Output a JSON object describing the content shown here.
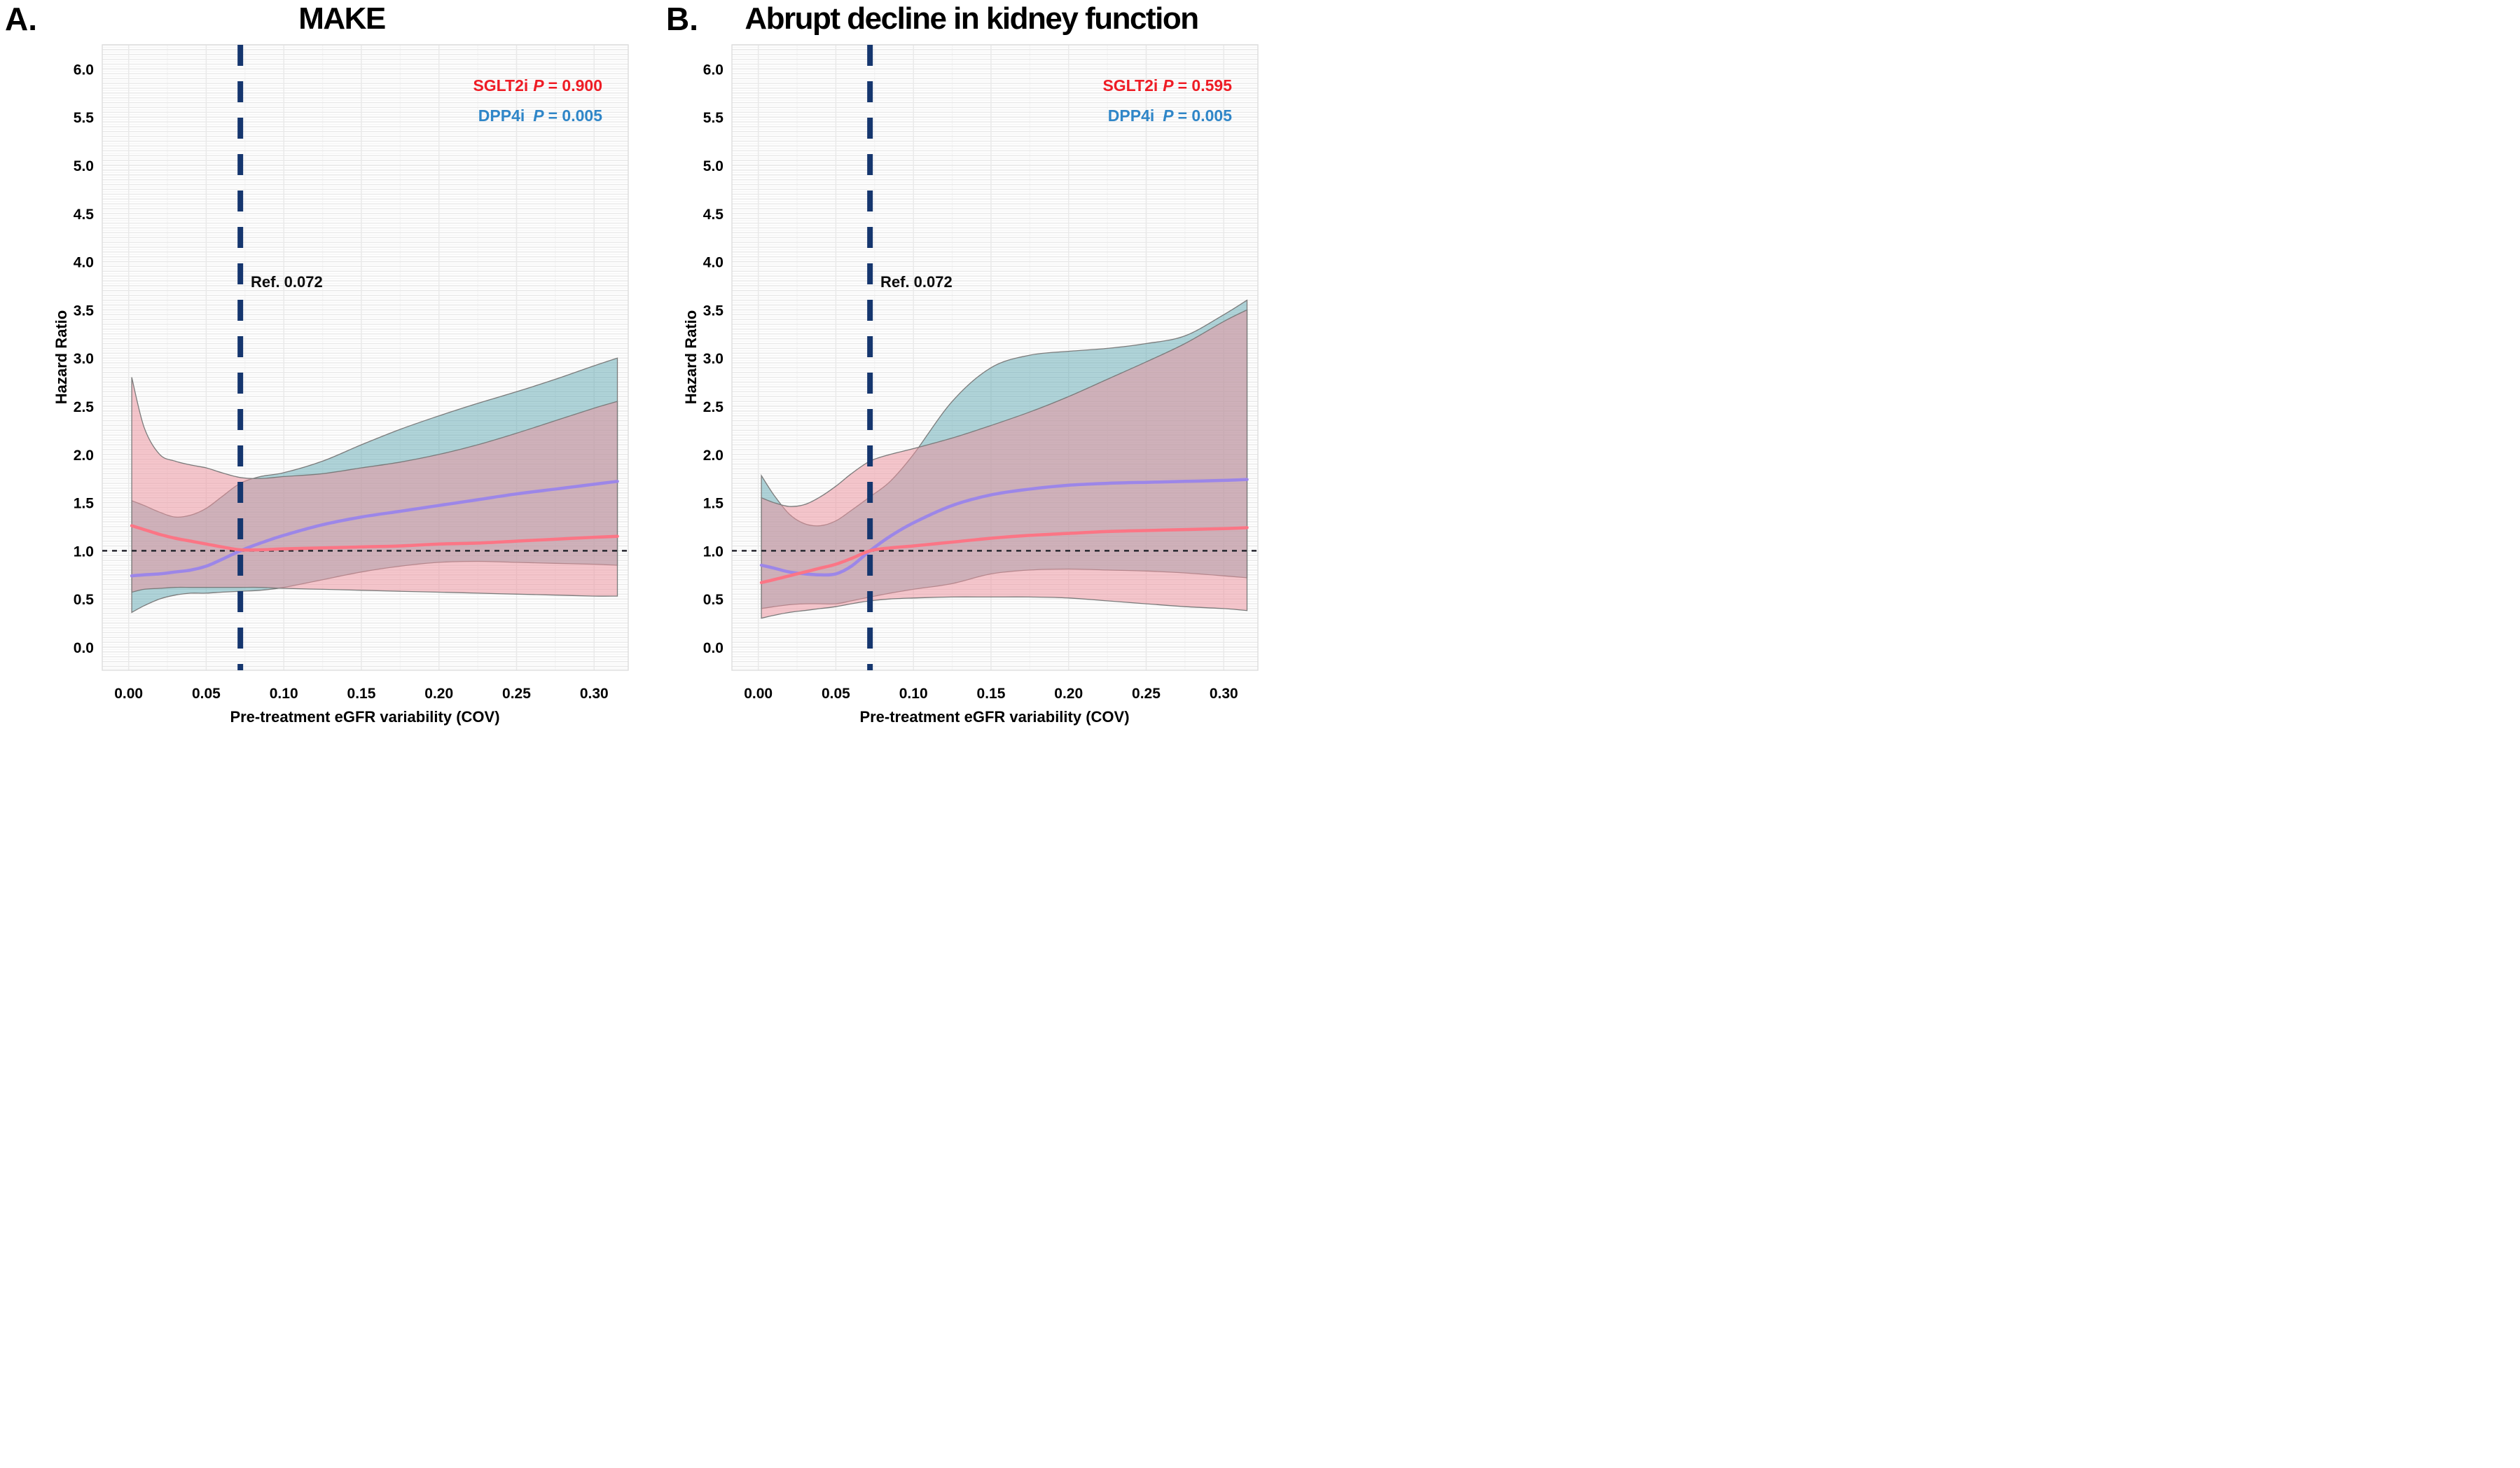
{
  "page": {
    "background": "#ffffff"
  },
  "axes": {
    "y_title": "Hazard Ratio",
    "x_title": "Pre-treatment eGFR variability (COV)"
  },
  "colors": {
    "legend_red": "#ee1c25",
    "legend_blue": "#2f86c8",
    "ref_navy": "#15366e",
    "hline_black": "#26262e",
    "band_border": "#7b7b7b",
    "grid_minor": "#f5f5f5",
    "grid_major": "#e9e9e9",
    "panel_edge": "#dddddd"
  },
  "panels": [
    {
      "letter": "A.",
      "title": "MAKE",
      "ref_label": "Ref. 0.072",
      "legend": {
        "sglt2i_name": "SGLT2i",
        "sglt2i_p": "P",
        "sglt2i_val": "= 0.900",
        "dpp4i_name": "DPP4i",
        "dpp4i_p": "P",
        "dpp4i_val": "= 0.005"
      }
    },
    {
      "letter": "B.",
      "title": "Abrupt decline in kidney function",
      "ref_label": "Ref. 0.072",
      "legend": {
        "sglt2i_name": "SGLT2i",
        "sglt2i_p": "P",
        "sglt2i_val": "= 0.595",
        "dpp4i_name": "DPP4i",
        "dpp4i_p": "P",
        "dpp4i_val": "= 0.005"
      }
    }
  ],
  "chart_data": [
    {
      "type": "line",
      "title": "MAKE",
      "xlabel": "Pre-treatment eGFR variability (COV)",
      "ylabel": "Hazard Ratio",
      "xlim": [
        -0.017,
        0.322
      ],
      "ylim": [
        -0.24,
        6.25
      ],
      "x_ticks": [
        0.0,
        0.05,
        0.1,
        0.15,
        0.2,
        0.25,
        0.3
      ],
      "y_ticks": [
        0.0,
        0.5,
        1.0,
        1.5,
        2.0,
        2.5,
        3.0,
        3.5,
        4.0,
        4.5,
        5.0,
        5.5,
        6.0
      ],
      "x_minor_step": 0.025,
      "y_minor_step": 0.25,
      "grid": true,
      "hline_y": 1.0,
      "ref_line_x": 0.072,
      "ref_label": "Ref. 0.072",
      "legend_position": "top-right",
      "x": [
        0.002,
        0.01,
        0.02,
        0.03,
        0.04,
        0.05,
        0.06,
        0.072,
        0.085,
        0.1,
        0.125,
        0.15,
        0.175,
        0.2,
        0.225,
        0.25,
        0.275,
        0.3,
        0.315
      ],
      "series": [
        {
          "name": "SGLT2i",
          "p_value": 0.9,
          "line_color": "#fb7585",
          "band_color": "rgba(236,146,158,0.52)",
          "line": [
            1.26,
            1.22,
            1.17,
            1.13,
            1.1,
            1.07,
            1.04,
            1.01,
            1.01,
            1.02,
            1.03,
            1.04,
            1.05,
            1.07,
            1.08,
            1.1,
            1.12,
            1.14,
            1.15
          ],
          "ci_upper": [
            2.8,
            2.28,
            2.0,
            1.93,
            1.89,
            1.86,
            1.81,
            1.76,
            1.75,
            1.77,
            1.8,
            1.86,
            1.92,
            2.0,
            2.1,
            2.22,
            2.35,
            2.48,
            2.55
          ],
          "ci_lower": [
            0.57,
            0.6,
            0.61,
            0.62,
            0.62,
            0.62,
            0.62,
            0.62,
            0.62,
            0.61,
            0.6,
            0.59,
            0.58,
            0.57,
            0.56,
            0.55,
            0.54,
            0.53,
            0.53
          ]
        },
        {
          "name": "DPP4i",
          "p_value": 0.005,
          "line_color": "#9c86e8",
          "band_color": "rgba(80,160,170,0.45)",
          "line": [
            0.74,
            0.75,
            0.76,
            0.78,
            0.8,
            0.84,
            0.91,
            1.0,
            1.08,
            1.16,
            1.27,
            1.35,
            1.41,
            1.47,
            1.53,
            1.59,
            1.64,
            1.69,
            1.72
          ],
          "ci_upper": [
            1.52,
            1.47,
            1.4,
            1.35,
            1.37,
            1.44,
            1.56,
            1.7,
            1.77,
            1.81,
            1.93,
            2.1,
            2.26,
            2.4,
            2.53,
            2.65,
            2.78,
            2.92,
            3.0
          ],
          "ci_lower": [
            0.36,
            0.43,
            0.5,
            0.54,
            0.56,
            0.56,
            0.57,
            0.58,
            0.59,
            0.62,
            0.7,
            0.78,
            0.84,
            0.88,
            0.89,
            0.88,
            0.87,
            0.86,
            0.85
          ]
        }
      ]
    },
    {
      "type": "line",
      "title": "Abrupt decline in kidney function",
      "xlabel": "Pre-treatment eGFR variability (COV)",
      "ylabel": "Hazard Ratio",
      "xlim": [
        -0.017,
        0.322
      ],
      "ylim": [
        -0.24,
        6.25
      ],
      "x_ticks": [
        0.0,
        0.05,
        0.1,
        0.15,
        0.2,
        0.25,
        0.3
      ],
      "y_ticks": [
        0.0,
        0.5,
        1.0,
        1.5,
        2.0,
        2.5,
        3.0,
        3.5,
        4.0,
        4.5,
        5.0,
        5.5,
        6.0
      ],
      "x_minor_step": 0.025,
      "y_minor_step": 0.25,
      "grid": true,
      "hline_y": 1.0,
      "ref_line_x": 0.072,
      "ref_label": "Ref. 0.072",
      "legend_position": "top-right",
      "x": [
        0.002,
        0.01,
        0.02,
        0.03,
        0.04,
        0.05,
        0.06,
        0.072,
        0.085,
        0.1,
        0.125,
        0.15,
        0.175,
        0.2,
        0.225,
        0.25,
        0.275,
        0.3,
        0.315
      ],
      "series": [
        {
          "name": "SGLT2i",
          "p_value": 0.595,
          "line_color": "#fb7585",
          "band_color": "rgba(236,146,158,0.52)",
          "line": [
            0.67,
            0.7,
            0.74,
            0.78,
            0.82,
            0.86,
            0.92,
            1.0,
            1.03,
            1.05,
            1.09,
            1.13,
            1.16,
            1.18,
            1.2,
            1.21,
            1.22,
            1.23,
            1.24
          ],
          "ci_upper": [
            1.55,
            1.5,
            1.46,
            1.48,
            1.56,
            1.67,
            1.8,
            1.93,
            2.0,
            2.06,
            2.17,
            2.3,
            2.44,
            2.6,
            2.78,
            2.96,
            3.15,
            3.38,
            3.5
          ],
          "ci_lower": [
            0.3,
            0.33,
            0.36,
            0.38,
            0.4,
            0.42,
            0.45,
            0.48,
            0.5,
            0.51,
            0.52,
            0.52,
            0.52,
            0.51,
            0.48,
            0.45,
            0.42,
            0.4,
            0.38
          ]
        },
        {
          "name": "DPP4i",
          "p_value": 0.005,
          "line_color": "#9c86e8",
          "band_color": "rgba(80,160,170,0.45)",
          "line": [
            0.85,
            0.82,
            0.78,
            0.76,
            0.75,
            0.76,
            0.84,
            1.0,
            1.15,
            1.29,
            1.47,
            1.58,
            1.64,
            1.68,
            1.7,
            1.71,
            1.72,
            1.73,
            1.74
          ],
          "ci_upper": [
            1.78,
            1.58,
            1.38,
            1.28,
            1.26,
            1.31,
            1.42,
            1.56,
            1.72,
            2.0,
            2.55,
            2.9,
            3.03,
            3.07,
            3.1,
            3.15,
            3.23,
            3.45,
            3.6
          ],
          "ci_lower": [
            0.4,
            0.42,
            0.44,
            0.45,
            0.45,
            0.45,
            0.48,
            0.52,
            0.56,
            0.6,
            0.66,
            0.76,
            0.8,
            0.81,
            0.8,
            0.79,
            0.77,
            0.74,
            0.72
          ]
        }
      ]
    }
  ]
}
